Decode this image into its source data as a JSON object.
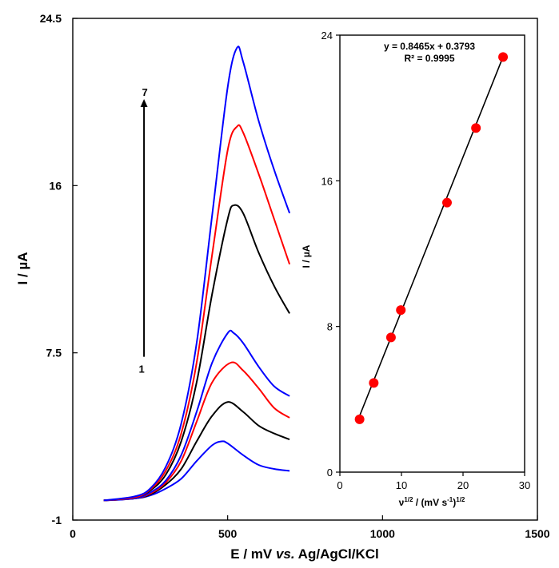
{
  "chart_data": [
    {
      "type": "line",
      "xlabel_parts": [
        "E / mV ",
        "vs.",
        " Ag/AgCl/KCl"
      ],
      "ylabel": "I / µA",
      "xlim": [
        0,
        1500
      ],
      "ylim": [
        -1,
        24.5
      ],
      "xticks": [
        0,
        500,
        1000,
        1500
      ],
      "yticks": [
        -1,
        7.5,
        16,
        24.5
      ],
      "xtick_labels": [
        "0",
        "500",
        "1000",
        "1500"
      ],
      "ytick_labels": [
        "-1",
        "7.5",
        "16",
        "24.5"
      ],
      "arrow": {
        "start_label": "1",
        "end_label": "7",
        "x": 230,
        "y_start": 7.3,
        "y_end": 20.4
      },
      "series": [
        {
          "color": "#0000ff",
          "x": [
            100,
            200,
            250,
            300,
            350,
            400,
            450,
            480,
            500,
            550,
            600,
            650,
            700
          ],
          "values": [
            0.0,
            0.1,
            0.25,
            0.6,
            1.1,
            2.0,
            2.8,
            3.0,
            2.9,
            2.3,
            1.8,
            1.6,
            1.5
          ]
        },
        {
          "color": "#000000",
          "x": [
            100,
            200,
            250,
            300,
            350,
            400,
            450,
            500,
            550,
            600,
            650,
            700
          ],
          "values": [
            0.0,
            0.1,
            0.3,
            0.8,
            1.6,
            3.0,
            4.3,
            5.0,
            4.5,
            3.8,
            3.4,
            3.1
          ]
        },
        {
          "color": "#ff0000",
          "x": [
            100,
            200,
            250,
            300,
            350,
            400,
            450,
            510,
            550,
            600,
            650,
            700
          ],
          "values": [
            0.0,
            0.1,
            0.35,
            0.9,
            2.0,
            4.0,
            6.0,
            7.0,
            6.6,
            5.7,
            4.7,
            4.2
          ]
        },
        {
          "color": "#0000ff",
          "x": [
            100,
            200,
            250,
            300,
            350,
            400,
            450,
            500,
            520,
            550,
            600,
            650,
            700
          ],
          "values": [
            0.0,
            0.1,
            0.4,
            1.0,
            2.3,
            4.5,
            7.0,
            8.5,
            8.5,
            8.0,
            6.8,
            5.8,
            5.3
          ]
        },
        {
          "color": "#000000",
          "x": [
            100,
            200,
            250,
            300,
            350,
            400,
            450,
            500,
            520,
            550,
            600,
            650,
            700
          ],
          "values": [
            0.0,
            0.15,
            0.5,
            1.3,
            3.0,
            6.0,
            10.5,
            14.3,
            15.0,
            14.6,
            12.6,
            10.9,
            9.5
          ]
        },
        {
          "color": "#ff0000",
          "x": [
            100,
            200,
            250,
            300,
            350,
            400,
            450,
            500,
            530,
            550,
            600,
            650,
            700
          ],
          "values": [
            0.0,
            0.15,
            0.55,
            1.5,
            3.4,
            7.0,
            12.5,
            17.8,
            19.0,
            18.7,
            16.6,
            14.3,
            12.0
          ]
        },
        {
          "color": "#0000ff",
          "x": [
            100,
            200,
            250,
            300,
            350,
            400,
            450,
            500,
            530,
            550,
            600,
            650,
            700
          ],
          "values": [
            0.0,
            0.2,
            0.6,
            1.7,
            3.9,
            8.0,
            14.5,
            21.0,
            23.0,
            22.3,
            19.3,
            16.8,
            14.6
          ]
        }
      ]
    },
    {
      "type": "scatter",
      "xlabel_main": "ν",
      "xlabel_sup1": "1/2",
      "xlabel_mid": " / (mV s",
      "xlabel_sup2": "-1",
      "xlabel_end": ")",
      "xlabel_sup3": "1/2",
      "ylabel": "I / µA",
      "xlim": [
        0,
        30
      ],
      "ylim": [
        0,
        24
      ],
      "xticks": [
        0,
        10,
        20,
        30
      ],
      "yticks": [
        0,
        8,
        16,
        24
      ],
      "xtick_labels": [
        "0",
        "10",
        "20",
        "30"
      ],
      "ytick_labels": [
        "0",
        "8",
        "16",
        "24"
      ],
      "point_color": "#ff0000",
      "x": [
        3.2,
        5.5,
        8.3,
        9.9,
        17.4,
        22.1,
        26.5
      ],
      "values": [
        2.9,
        4.9,
        7.4,
        8.9,
        14.8,
        18.9,
        22.8
      ],
      "trendline": {
        "slope": 0.8465,
        "intercept": 0.3793,
        "x_range": [
          3.2,
          26.5
        ]
      },
      "equation": "y = 0.8465x  + 0.3793",
      "r_squared": "R² = 0.9995"
    }
  ]
}
